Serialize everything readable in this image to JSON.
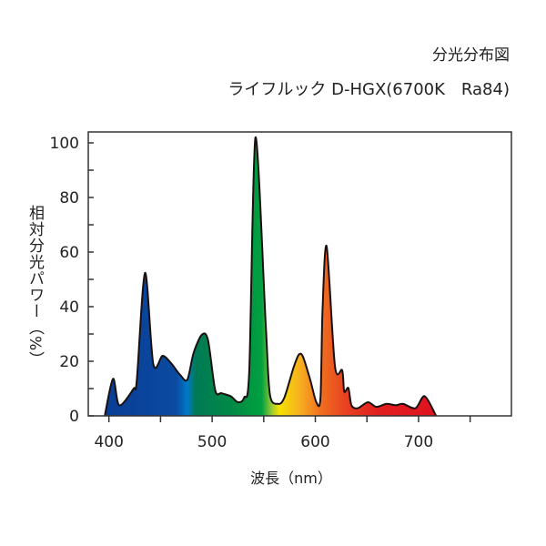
{
  "chart_data": {
    "type": "area",
    "title": "分光分布図",
    "subtitle": "ライフルック D-HGX(6700K　Ra84)",
    "xlabel": "波長（nm）",
    "ylabel": "相対分光パワー（%）",
    "xlim": [
      380,
      790
    ],
    "ylim": [
      0,
      104
    ],
    "x_ticks": [
      400,
      450,
      500,
      550,
      600,
      650,
      700,
      750
    ],
    "x_tick_labels": [
      "400",
      "500",
      "600",
      "700"
    ],
    "y_ticks": [
      0,
      10,
      20,
      30,
      40,
      50,
      60,
      70,
      80,
      90,
      100
    ],
    "y_tick_labels": [
      "0",
      "20",
      "40",
      "60",
      "80",
      "100"
    ],
    "grid": false,
    "fill": "visible-spectrum gradient",
    "x": [
      396,
      404,
      410,
      424,
      427,
      435,
      443,
      452,
      460,
      469,
      476,
      482,
      490,
      496,
      503,
      509,
      518,
      525,
      531,
      536,
      542,
      552,
      556,
      564,
      570,
      579,
      584,
      588,
      595,
      601,
      605,
      607,
      611,
      619,
      626,
      628,
      632,
      635,
      641,
      651,
      659,
      669,
      678,
      685,
      697,
      706,
      717
    ],
    "values": [
      0,
      13.6,
      3.9,
      10,
      13,
      52.4,
      19,
      22,
      19.4,
      15,
      13.3,
      23,
      29.7,
      27.8,
      9.4,
      8.3,
      7.2,
      5,
      6.7,
      16.7,
      102,
      33,
      7.8,
      4.4,
      6.7,
      17.8,
      22.4,
      21.7,
      13.3,
      5,
      6.7,
      39,
      62,
      18.3,
      16.7,
      8.9,
      10.2,
      3.9,
      2.8,
      5,
      3.3,
      4.4,
      3.9,
      4.4,
      2.8,
      7.2,
      0
    ]
  }
}
